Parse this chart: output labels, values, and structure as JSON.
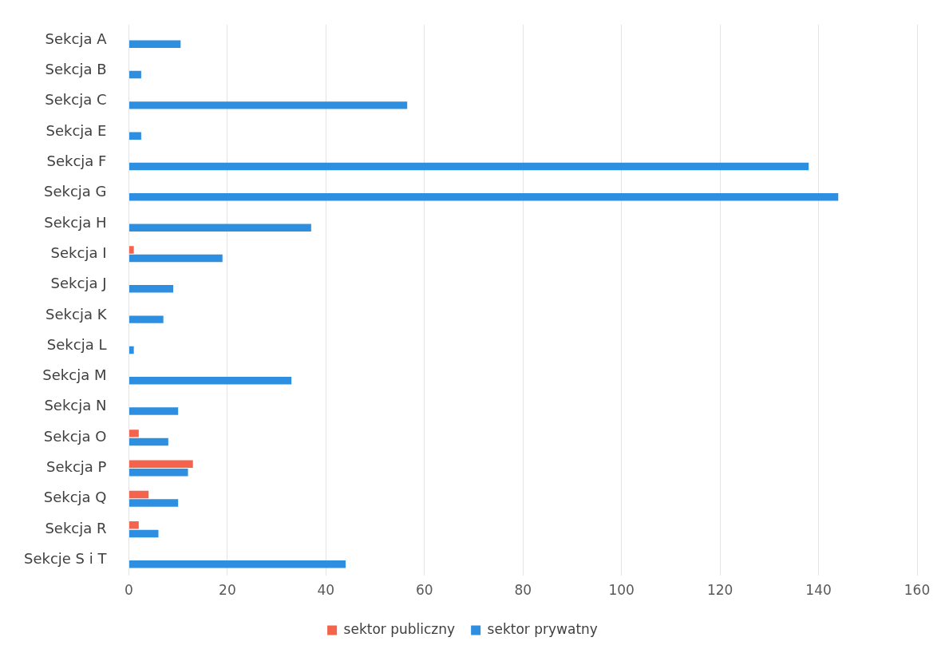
{
  "chart_data": {
    "type": "bar",
    "orientation": "horizontal",
    "categories": [
      "Sekcja A",
      "Sekcja B",
      "Sekcja C",
      "Sekcja E",
      "Sekcja F",
      "Sekcja G",
      "Sekcja H",
      "Sekcja I",
      "Sekcja J",
      "Sekcja K",
      "Sekcja L",
      "Sekcja M",
      "Sekcja N",
      "Sekcja O",
      "Sekcja P",
      "Sekcja Q",
      "Sekcja R",
      "Sekcje S i T"
    ],
    "series": [
      {
        "name": "sektor publiczny",
        "color": "#f4634b",
        "values": [
          null,
          null,
          null,
          null,
          null,
          null,
          null,
          1,
          null,
          null,
          null,
          null,
          null,
          2,
          13,
          4,
          2,
          null
        ]
      },
      {
        "name": "sektor prywatny",
        "color": "#2e8fe0",
        "values": [
          10.5,
          2.5,
          56.5,
          2.5,
          138,
          144,
          37,
          19,
          9,
          7,
          1,
          33,
          10,
          8,
          12,
          10,
          6,
          44
        ]
      }
    ],
    "xlim": [
      0,
      160
    ],
    "xticks": [
      0,
      20,
      40,
      60,
      80,
      100,
      120,
      140,
      160
    ],
    "grid": "x",
    "legend": "bottom"
  }
}
